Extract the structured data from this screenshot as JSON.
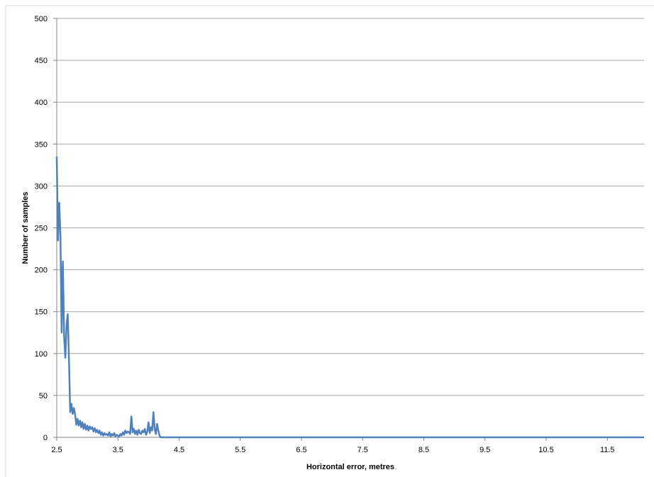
{
  "chart_data": {
    "type": "line",
    "title": "",
    "xlabel": "Horizontal error, metres",
    "ylabel": "Number of samples",
    "xlim": [
      2.5,
      12.1
    ],
    "ylim": [
      0,
      500
    ],
    "grid": "horizontal",
    "legend": "none",
    "line_color": "#4F81BD",
    "grid_color": "#A6A6A6",
    "x_ticks": [
      2.5,
      3.5,
      4.5,
      5.5,
      6.5,
      7.5,
      8.5,
      9.5,
      10.5,
      11.5
    ],
    "x_tick_labels": [
      "2.5",
      "3.5",
      "4.5",
      "5.5",
      "6.5",
      "7.5",
      "8.5",
      "9.5",
      "10.5",
      "11.5"
    ],
    "y_ticks": [
      0,
      50,
      100,
      150,
      200,
      250,
      300,
      350,
      400,
      450,
      500
    ],
    "y_tick_labels": [
      "0",
      "50",
      "100",
      "150",
      "200",
      "250",
      "300",
      "350",
      "400",
      "450",
      "500"
    ],
    "series": [
      {
        "x": [
          2.5,
          2.52,
          2.54,
          2.56,
          2.58,
          2.6,
          2.62,
          2.64,
          2.66,
          2.68,
          2.7,
          2.72,
          2.74,
          2.76,
          2.78,
          2.8,
          2.82,
          2.84,
          2.86,
          2.88,
          2.9,
          2.92,
          2.94,
          2.96,
          2.98,
          3.0,
          3.02,
          3.04,
          3.06,
          3.08,
          3.1,
          3.12,
          3.14,
          3.16,
          3.18,
          3.2,
          3.22,
          3.24,
          3.26,
          3.28,
          3.3,
          3.32,
          3.34,
          3.36,
          3.38,
          3.4,
          3.42,
          3.44,
          3.46,
          3.48,
          3.5,
          3.52,
          3.54,
          3.56,
          3.58,
          3.6,
          3.62,
          3.64,
          3.66,
          3.68,
          3.7,
          3.72,
          3.74,
          3.76,
          3.78,
          3.8,
          3.82,
          3.84,
          3.86,
          3.88,
          3.9,
          3.92,
          3.94,
          3.96,
          3.98,
          4.0,
          4.02,
          4.04,
          4.06,
          4.08,
          4.1,
          4.12,
          4.14,
          4.16,
          4.18,
          4.2,
          4.22,
          4.24,
          4.26,
          4.28,
          4.3,
          4.32,
          4.34,
          4.36,
          12.1
        ],
        "y": [
          335,
          235,
          280,
          240,
          125,
          210,
          120,
          95,
          135,
          147,
          90,
          30,
          40,
          28,
          35,
          27,
          15,
          22,
          14,
          20,
          12,
          18,
          10,
          16,
          9,
          14,
          8,
          13,
          10,
          12,
          7,
          11,
          6,
          9,
          5,
          8,
          3,
          6,
          2,
          5,
          3,
          4,
          2,
          6,
          1,
          4,
          2,
          5,
          1,
          3,
          2,
          1,
          4,
          2,
          6,
          3,
          8,
          5,
          7,
          6,
          4,
          25,
          6,
          10,
          4,
          8,
          3,
          9,
          5,
          4,
          8,
          6,
          10,
          3,
          7,
          18,
          5,
          12,
          8,
          30,
          10,
          4,
          16,
          8,
          2,
          0,
          0,
          0,
          0,
          0,
          0,
          0,
          0,
          0,
          0
        ]
      }
    ]
  }
}
